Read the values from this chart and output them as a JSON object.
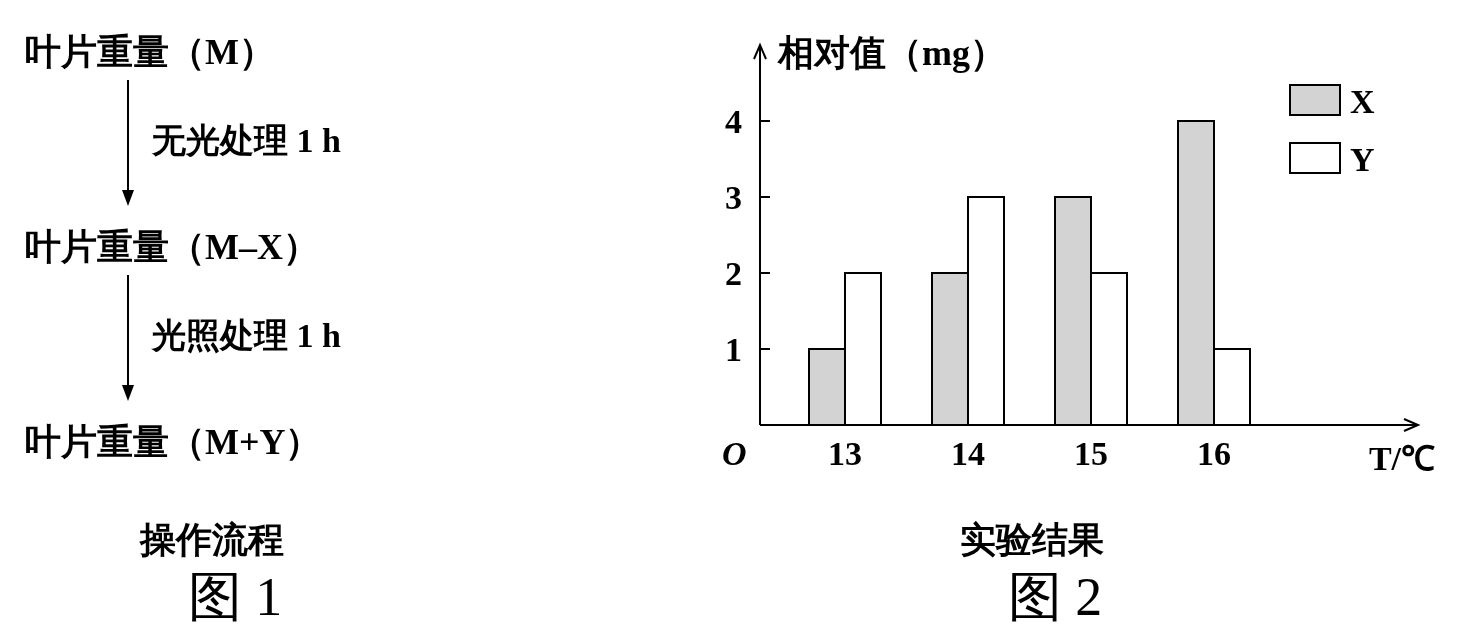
{
  "chart_data": [
    {
      "type": "other",
      "title": "操作流程",
      "subtitle": "图 1",
      "annotations": [
        "叶片重量（M）",
        "无光处理 1 h",
        "叶片重量（M–X）",
        "光照处理 1 h",
        "叶片重量（M+Y）"
      ]
    },
    {
      "type": "bar",
      "title": "实验结果",
      "subtitle": "图 2",
      "ylabel": "相对值（mg）",
      "xlabel": "T/℃",
      "categories": [
        "13",
        "14",
        "15",
        "16"
      ],
      "series": [
        {
          "name": "X",
          "color": "#d3d3d3",
          "values": [
            1,
            2,
            3,
            4
          ]
        },
        {
          "name": "Y",
          "color": "#ffffff",
          "values": [
            2,
            3,
            2,
            1
          ]
        }
      ],
      "ylim": [
        0,
        5
      ],
      "yticks": [
        1,
        2,
        3,
        4
      ],
      "legend": "top right",
      "grid": false,
      "annotations": [
        "O"
      ]
    }
  ]
}
